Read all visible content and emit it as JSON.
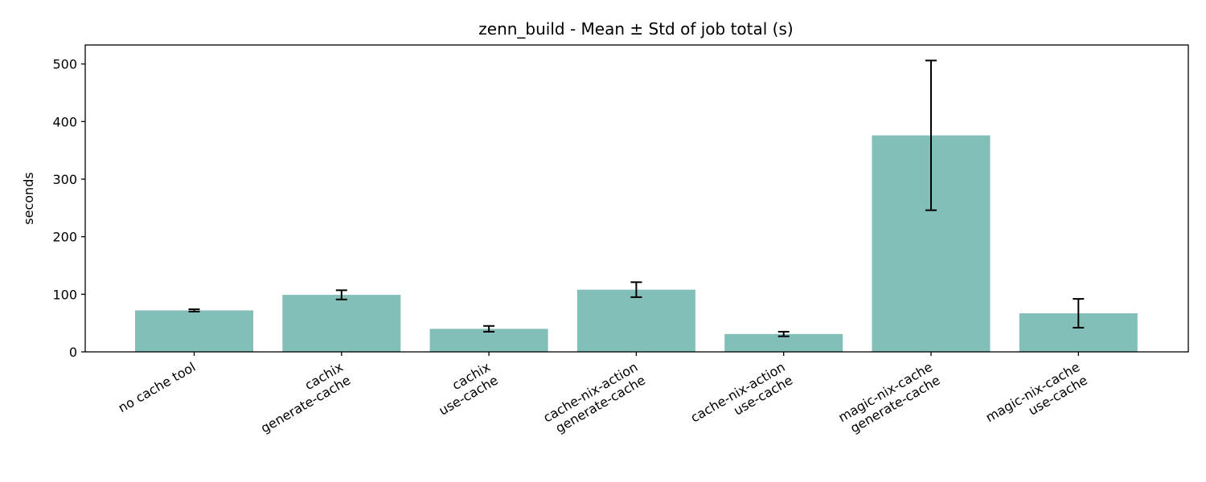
{
  "chart_data": {
    "type": "bar",
    "title": "zenn_build - Mean ± Std of job total (s)",
    "xlabel": "",
    "ylabel": "seconds",
    "ylim": [
      0,
      533
    ],
    "yticks": [
      0,
      100,
      200,
      300,
      400,
      500
    ],
    "grid": false,
    "bar_color": "#82bfb9",
    "errorbar_color": "#000000",
    "categories": [
      [
        "no cache tool"
      ],
      [
        "cachix",
        "generate-cache"
      ],
      [
        "cachix",
        "use-cache"
      ],
      [
        "cache-nix-action",
        "generate-cache"
      ],
      [
        "cache-nix-action",
        "use-cache"
      ],
      [
        "magic-nix-cache",
        "generate-cache"
      ],
      [
        "magic-nix-cache",
        "use-cache"
      ]
    ],
    "values": [
      72,
      99,
      40,
      108,
      31,
      376,
      67
    ],
    "errors": [
      2,
      8,
      5,
      13,
      4,
      130,
      25
    ]
  }
}
